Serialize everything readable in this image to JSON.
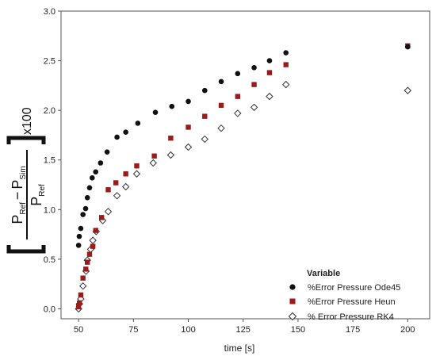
{
  "chart_data": {
    "type": "scatter",
    "xlabel": "time [s]",
    "ylabel": {
      "numerator_main_1": "P",
      "numerator_sub_1": "Ref",
      "minus": "−",
      "numerator_main_2": "P",
      "numerator_sub_2": "Sim",
      "denominator_main": "P",
      "denominator_sub": "Ref",
      "multiplier": "x100"
    },
    "xlim": [
      42,
      210
    ],
    "ylim": [
      -0.1,
      3.0
    ],
    "x_ticks": [
      50,
      75,
      100,
      125,
      150,
      175,
      200
    ],
    "y_ticks": [
      "0.0",
      "0.5",
      "1.0",
      "1.5",
      "2.0",
      "2.5",
      "3.0"
    ],
    "grid": false,
    "legend": {
      "title": "Variable",
      "position": "bottom-right"
    },
    "series": [
      {
        "name": "%Error Pressure Ode45",
        "marker": "circle",
        "color": "#111111",
        "points": [
          [
            50.0,
            0.64
          ],
          [
            50.3,
            0.73
          ],
          [
            51.0,
            0.81
          ],
          [
            52.0,
            0.95
          ],
          [
            53.2,
            1.01
          ],
          [
            54.0,
            1.12
          ],
          [
            55.0,
            1.22
          ],
          [
            56.2,
            1.32
          ],
          [
            57.8,
            1.38
          ],
          [
            60.0,
            1.47
          ],
          [
            63.0,
            1.58
          ],
          [
            67.5,
            1.73
          ],
          [
            71.5,
            1.78
          ],
          [
            77.0,
            1.87
          ],
          [
            85.0,
            1.98
          ],
          [
            92.5,
            2.04
          ],
          [
            100.0,
            2.09
          ],
          [
            107.5,
            2.2
          ],
          [
            115.0,
            2.29
          ],
          [
            122.5,
            2.37
          ],
          [
            130.0,
            2.43
          ],
          [
            137.0,
            2.5
          ],
          [
            144.5,
            2.58
          ],
          [
            200.0,
            2.64
          ]
        ]
      },
      {
        "name": "%Error Pressure Heun",
        "marker": "square",
        "color": "#9b1b1b",
        "points": [
          [
            50.0,
            0.02
          ],
          [
            50.4,
            0.06
          ],
          [
            51.0,
            0.14
          ],
          [
            52.0,
            0.31
          ],
          [
            53.3,
            0.4
          ],
          [
            54.0,
            0.47
          ],
          [
            55.0,
            0.55
          ],
          [
            56.5,
            0.63
          ],
          [
            57.8,
            0.79
          ],
          [
            60.5,
            0.92
          ],
          [
            63.5,
            1.2
          ],
          [
            67.0,
            1.27
          ],
          [
            71.5,
            1.36
          ],
          [
            76.5,
            1.44
          ],
          [
            84.5,
            1.54
          ],
          [
            92.0,
            1.72
          ],
          [
            100.0,
            1.83
          ],
          [
            107.5,
            1.94
          ],
          [
            115.0,
            2.05
          ],
          [
            122.5,
            2.14
          ],
          [
            130.0,
            2.26
          ],
          [
            137.0,
            2.38
          ],
          [
            144.5,
            2.46
          ],
          [
            200.0,
            2.65
          ]
        ]
      },
      {
        "name": "% Error Pressure RK4",
        "marker": "diamond",
        "color": "#333333",
        "points": [
          [
            50.0,
            0.0
          ],
          [
            50.4,
            0.05
          ],
          [
            51.0,
            0.1
          ],
          [
            52.0,
            0.23
          ],
          [
            53.4,
            0.38
          ],
          [
            54.0,
            0.49
          ],
          [
            55.5,
            0.6
          ],
          [
            56.5,
            0.69
          ],
          [
            58.0,
            0.78
          ],
          [
            61.0,
            0.89
          ],
          [
            63.5,
            0.98
          ],
          [
            67.5,
            1.14
          ],
          [
            71.5,
            1.23
          ],
          [
            76.5,
            1.36
          ],
          [
            84.0,
            1.47
          ],
          [
            92.0,
            1.55
          ],
          [
            100.0,
            1.63
          ],
          [
            107.5,
            1.71
          ],
          [
            115.0,
            1.82
          ],
          [
            122.5,
            1.97
          ],
          [
            130.0,
            2.03
          ],
          [
            137.0,
            2.14
          ],
          [
            144.5,
            2.26
          ],
          [
            200.0,
            2.2
          ]
        ]
      }
    ]
  }
}
